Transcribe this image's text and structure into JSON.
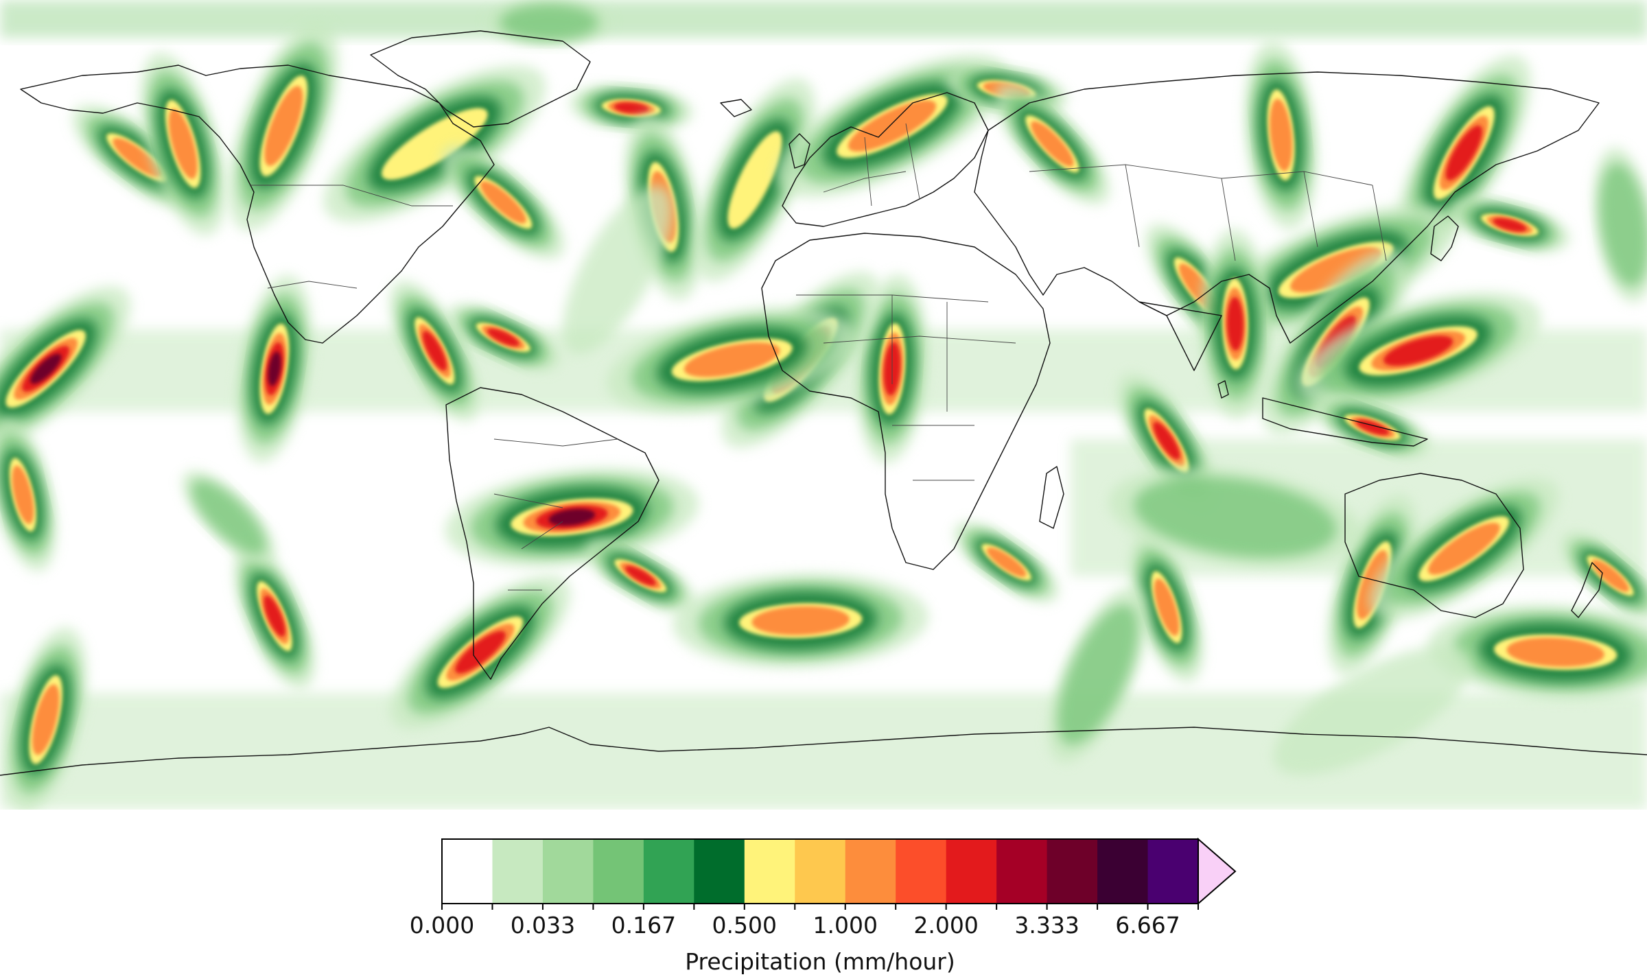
{
  "map": {
    "variable": "Precipitation",
    "projection": "equirectangular",
    "coastlines": true,
    "country_borders": true,
    "precip_regions": [
      {
        "name": "arctic-band",
        "lon": -60,
        "lat": 85,
        "level": 3
      },
      {
        "name": "north-pacific-front",
        "lon": -150,
        "lat": 55,
        "level": 8
      },
      {
        "name": "alaska-gulf",
        "lon": -140,
        "lat": 58,
        "level": 9
      },
      {
        "name": "canada-west",
        "lon": -118,
        "lat": 62,
        "level": 8
      },
      {
        "name": "hudson-front",
        "lon": -85,
        "lat": 58,
        "level": 6
      },
      {
        "name": "greenland-south",
        "lon": -42,
        "lat": 66,
        "level": 10
      },
      {
        "name": "us-east-front",
        "lon": -70,
        "lat": 45,
        "level": 9
      },
      {
        "name": "north-atlantic-front",
        "lon": -35,
        "lat": 44,
        "level": 9
      },
      {
        "name": "atlantic-midlat",
        "lon": -15,
        "lat": 50,
        "level": 7
      },
      {
        "name": "scandinavia",
        "lon": 15,
        "lat": 62,
        "level": 8
      },
      {
        "name": "russia-north",
        "lon": 40,
        "lat": 70,
        "level": 9
      },
      {
        "name": "russia-front",
        "lon": 50,
        "lat": 58,
        "level": 9
      },
      {
        "name": "siberia-east",
        "lon": 100,
        "lat": 60,
        "level": 9
      },
      {
        "name": "okhotsk",
        "lon": 140,
        "lat": 56,
        "level": 10
      },
      {
        "name": "east-china",
        "lon": 112,
        "lat": 30,
        "level": 9
      },
      {
        "name": "japan-east",
        "lon": 150,
        "lat": 40,
        "level": 10
      },
      {
        "name": "himalaya-south",
        "lon": 82,
        "lat": 26,
        "level": 9
      },
      {
        "name": "bay-of-bengal",
        "lon": 90,
        "lat": 18,
        "level": 10
      },
      {
        "name": "south-china-sea",
        "lon": 112,
        "lat": 14,
        "level": 10
      },
      {
        "name": "philippines-east",
        "lon": 130,
        "lat": 12,
        "level": 10
      },
      {
        "name": "maritime-continent",
        "lon": 120,
        "lat": -5,
        "level": 10
      },
      {
        "name": "indian-ocean-itcz",
        "lon": 75,
        "lat": -8,
        "level": 11
      },
      {
        "name": "africa-sahel",
        "lon": 15,
        "lat": 8,
        "level": 11
      },
      {
        "name": "west-africa",
        "lon": -5,
        "lat": 10,
        "level": 9
      },
      {
        "name": "atlantic-itcz",
        "lon": -20,
        "lat": 10,
        "level": 9
      },
      {
        "name": "caribbean",
        "lon": -70,
        "lat": 15,
        "level": 10
      },
      {
        "name": "central-america",
        "lon": -85,
        "lat": 12,
        "level": 10
      },
      {
        "name": "pacific-itcz-east",
        "lon": -120,
        "lat": 8,
        "level": 12
      },
      {
        "name": "pacific-itcz-west",
        "lon": -170,
        "lat": 8,
        "level": 12
      },
      {
        "name": "south-america-sacz",
        "lon": -55,
        "lat": -25,
        "level": 12
      },
      {
        "name": "south-atlantic-front",
        "lon": -40,
        "lat": -38,
        "level": 10
      },
      {
        "name": "southern-pacific-cyclone",
        "lon": -120,
        "lat": -47,
        "level": 11
      },
      {
        "name": "pacific-south-west",
        "lon": -170,
        "lat": -70,
        "level": 9
      },
      {
        "name": "drake-passage",
        "lon": -75,
        "lat": -55,
        "level": 10
      },
      {
        "name": "south-atlantic-swirl",
        "lon": -5,
        "lat": -48,
        "level": 8
      },
      {
        "name": "madagascar-south",
        "lon": 40,
        "lat": -35,
        "level": 9
      },
      {
        "name": "southern-indian-front",
        "lon": 75,
        "lat": -45,
        "level": 9
      },
      {
        "name": "australia-south",
        "lon": 120,
        "lat": -40,
        "level": 8
      },
      {
        "name": "australia-southeast",
        "lon": 140,
        "lat": -32,
        "level": 9
      },
      {
        "name": "tasman-front",
        "lon": 160,
        "lat": -55,
        "level": 9
      },
      {
        "name": "new-zealand",
        "lon": 172,
        "lat": -38,
        "level": 8
      },
      {
        "name": "south-pacific-west",
        "lon": -175,
        "lat": -20,
        "level": 9
      },
      {
        "name": "southern-ocean-band",
        "lon": 60,
        "lat": -60,
        "level": 3
      },
      {
        "name": "antarctic-coast",
        "lon": 120,
        "lat": -68,
        "level": 2
      },
      {
        "name": "southern-indian-swirl",
        "lon": 90,
        "lat": -25,
        "level": 3
      },
      {
        "name": "south-pacific-broad",
        "lon": -130,
        "lat": -25,
        "level": 3
      },
      {
        "name": "north-pacific-broad",
        "lon": 175,
        "lat": 40,
        "level": 3
      },
      {
        "name": "north-atlantic-broad",
        "lon": -45,
        "lat": 30,
        "level": 2
      }
    ]
  },
  "colorbar": {
    "label": "Precipitation (mm/hour)",
    "extend": "max",
    "colors": [
      "#ffffff",
      "#c7e9c0",
      "#a1d99b",
      "#74c476",
      "#31a354",
      "#006d2c",
      "#fff37a",
      "#fec84e",
      "#fd8d3c",
      "#fc4e2a",
      "#e31a1c",
      "#a50026",
      "#6e0029",
      "#3b0033",
      "#4a0070"
    ],
    "extend_color": "#f9d0f7",
    "tick_labels": [
      "0.000",
      "0.033",
      "0.167",
      "0.500",
      "1.000",
      "2.000",
      "3.333",
      "6.667"
    ]
  }
}
